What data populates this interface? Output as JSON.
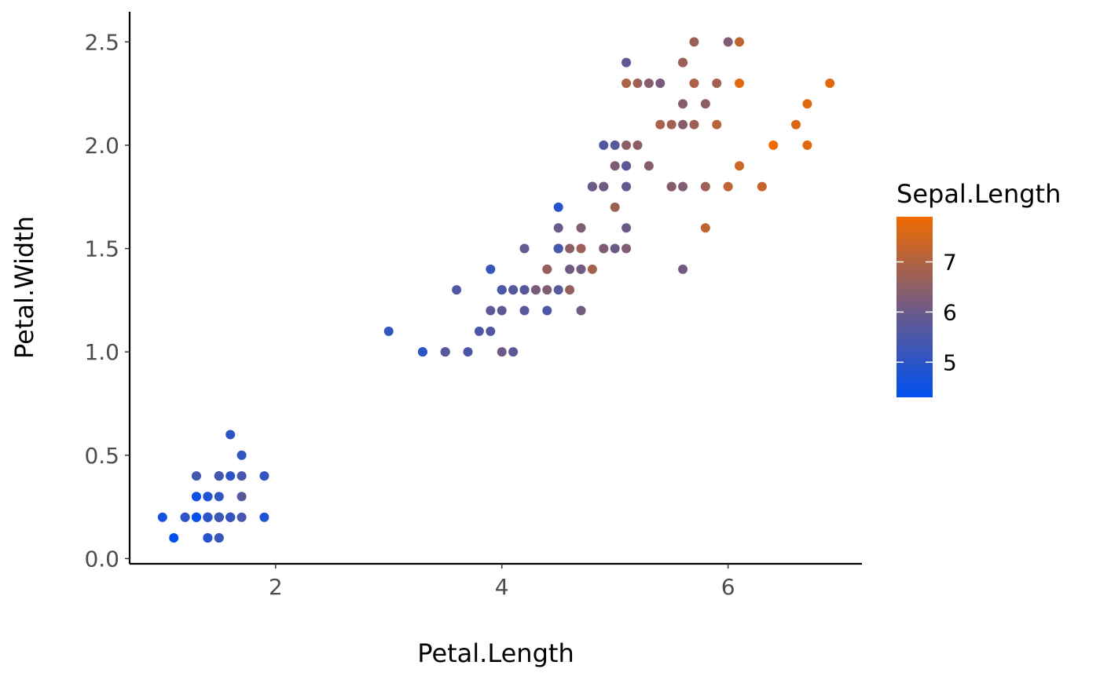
{
  "chart_data": {
    "type": "scatter",
    "xlabel": "Petal.Length",
    "ylabel": "Petal.Width",
    "xlim": [
      0.8,
      7.1
    ],
    "ylim": [
      -0.01,
      2.6
    ],
    "x_ticks": [
      2,
      4,
      6
    ],
    "x_tick_labels": [
      "2",
      "4",
      "6"
    ],
    "y_ticks": [
      0.0,
      0.5,
      1.0,
      1.5,
      2.0,
      2.5
    ],
    "y_tick_labels": [
      "0.0",
      "0.5",
      "1.0",
      "1.5",
      "2.0",
      "2.5"
    ],
    "grid": false,
    "legend": {
      "title": "Sepal.Length",
      "placement": "right",
      "min": 4.3,
      "max": 7.9,
      "breaks": [
        5,
        6,
        7
      ],
      "break_labels": [
        "5",
        "6",
        "7"
      ]
    },
    "color_low": "#0050F0",
    "color_mid": "#6A5A8A",
    "color_high": "#F06A00",
    "points": [
      [
        1.4,
        0.2,
        5.1
      ],
      [
        1.4,
        0.2,
        4.9
      ],
      [
        1.3,
        0.2,
        4.7
      ],
      [
        1.5,
        0.2,
        4.6
      ],
      [
        1.4,
        0.2,
        5.0
      ],
      [
        1.7,
        0.4,
        5.4
      ],
      [
        1.4,
        0.3,
        4.6
      ],
      [
        1.5,
        0.2,
        5.0
      ],
      [
        1.4,
        0.2,
        4.4
      ],
      [
        1.5,
        0.1,
        4.9
      ],
      [
        1.5,
        0.2,
        5.4
      ],
      [
        1.6,
        0.2,
        4.8
      ],
      [
        1.4,
        0.1,
        4.8
      ],
      [
        1.1,
        0.1,
        4.3
      ],
      [
        1.2,
        0.2,
        5.8
      ],
      [
        1.5,
        0.4,
        5.7
      ],
      [
        1.3,
        0.4,
        5.4
      ],
      [
        1.4,
        0.3,
        5.1
      ],
      [
        1.7,
        0.3,
        5.7
      ],
      [
        1.5,
        0.3,
        5.1
      ],
      [
        1.7,
        0.2,
        5.4
      ],
      [
        1.5,
        0.4,
        5.1
      ],
      [
        1.0,
        0.2,
        4.6
      ],
      [
        1.7,
        0.5,
        5.1
      ],
      [
        1.9,
        0.2,
        4.8
      ],
      [
        1.6,
        0.2,
        5.0
      ],
      [
        1.6,
        0.4,
        5.0
      ],
      [
        1.5,
        0.2,
        5.2
      ],
      [
        1.4,
        0.2,
        5.2
      ],
      [
        1.6,
        0.2,
        4.7
      ],
      [
        1.6,
        0.2,
        4.8
      ],
      [
        1.5,
        0.4,
        5.4
      ],
      [
        1.5,
        0.1,
        5.2
      ],
      [
        1.4,
        0.2,
        5.5
      ],
      [
        1.5,
        0.2,
        4.9
      ],
      [
        1.2,
        0.2,
        5.0
      ],
      [
        1.3,
        0.2,
        5.5
      ],
      [
        1.4,
        0.1,
        4.9
      ],
      [
        1.3,
        0.2,
        4.4
      ],
      [
        1.5,
        0.2,
        5.1
      ],
      [
        1.3,
        0.3,
        5.0
      ],
      [
        1.3,
        0.3,
        4.5
      ],
      [
        1.3,
        0.2,
        4.4
      ],
      [
        1.6,
        0.6,
        5.0
      ],
      [
        1.9,
        0.4,
        5.1
      ],
      [
        1.4,
        0.3,
        4.8
      ],
      [
        1.6,
        0.2,
        5.1
      ],
      [
        1.4,
        0.2,
        4.6
      ],
      [
        1.5,
        0.2,
        5.3
      ],
      [
        1.4,
        0.2,
        5.0
      ],
      [
        4.7,
        1.4,
        7.0
      ],
      [
        4.5,
        1.5,
        6.4
      ],
      [
        4.9,
        1.5,
        6.9
      ],
      [
        4.0,
        1.3,
        5.5
      ],
      [
        4.6,
        1.5,
        6.5
      ],
      [
        4.5,
        1.3,
        5.7
      ],
      [
        4.7,
        1.6,
        6.3
      ],
      [
        3.3,
        1.0,
        4.9
      ],
      [
        4.6,
        1.3,
        6.6
      ],
      [
        3.9,
        1.4,
        5.2
      ],
      [
        3.5,
        1.0,
        5.0
      ],
      [
        4.2,
        1.5,
        5.9
      ],
      [
        4.0,
        1.0,
        6.0
      ],
      [
        4.7,
        1.4,
        6.1
      ],
      [
        3.6,
        1.3,
        5.6
      ],
      [
        4.4,
        1.4,
        6.7
      ],
      [
        4.5,
        1.5,
        5.6
      ],
      [
        4.1,
        1.0,
        5.8
      ],
      [
        4.5,
        1.5,
        6.2
      ],
      [
        3.9,
        1.1,
        5.6
      ],
      [
        4.8,
        1.8,
        5.9
      ],
      [
        4.0,
        1.3,
        6.1
      ],
      [
        4.9,
        1.5,
        6.3
      ],
      [
        4.7,
        1.2,
        6.1
      ],
      [
        4.3,
        1.3,
        6.4
      ],
      [
        4.4,
        1.4,
        6.6
      ],
      [
        4.8,
        1.4,
        6.8
      ],
      [
        5.0,
        1.7,
        6.7
      ],
      [
        4.5,
        1.5,
        6.0
      ],
      [
        3.5,
        1.0,
        5.7
      ],
      [
        3.8,
        1.1,
        5.5
      ],
      [
        3.7,
        1.0,
        5.5
      ],
      [
        3.9,
        1.2,
        5.8
      ],
      [
        5.1,
        1.6,
        6.0
      ],
      [
        4.5,
        1.5,
        5.4
      ],
      [
        4.5,
        1.6,
        6.0
      ],
      [
        4.7,
        1.5,
        6.7
      ],
      [
        4.4,
        1.3,
        6.3
      ],
      [
        4.1,
        1.3,
        5.6
      ],
      [
        4.0,
        1.3,
        5.5
      ],
      [
        4.4,
        1.2,
        5.5
      ],
      [
        4.6,
        1.4,
        6.1
      ],
      [
        4.0,
        1.2,
        5.8
      ],
      [
        3.3,
        1.0,
        5.0
      ],
      [
        4.2,
        1.3,
        5.6
      ],
      [
        4.2,
        1.2,
        5.7
      ],
      [
        4.2,
        1.3,
        5.7
      ],
      [
        4.3,
        1.3,
        6.2
      ],
      [
        3.0,
        1.1,
        5.1
      ],
      [
        4.1,
        1.3,
        5.7
      ],
      [
        6.0,
        2.5,
        6.3
      ],
      [
        5.1,
        1.9,
        5.8
      ],
      [
        5.9,
        2.1,
        7.1
      ],
      [
        5.6,
        1.8,
        6.3
      ],
      [
        5.8,
        2.2,
        6.5
      ],
      [
        6.6,
        2.1,
        7.6
      ],
      [
        4.5,
        1.7,
        4.9
      ],
      [
        6.3,
        1.8,
        7.3
      ],
      [
        5.8,
        1.8,
        6.7
      ],
      [
        6.1,
        2.5,
        7.2
      ],
      [
        5.1,
        2.0,
        6.5
      ],
      [
        5.3,
        1.9,
        6.4
      ],
      [
        5.5,
        2.1,
        6.8
      ],
      [
        5.0,
        2.0,
        5.7
      ],
      [
        5.1,
        2.4,
        5.8
      ],
      [
        5.3,
        2.3,
        6.4
      ],
      [
        5.5,
        1.8,
        6.5
      ],
      [
        6.7,
        2.2,
        7.7
      ],
      [
        6.9,
        2.3,
        7.7
      ],
      [
        5.0,
        1.5,
        6.0
      ],
      [
        5.7,
        2.3,
        6.9
      ],
      [
        4.9,
        2.0,
        5.6
      ],
      [
        6.7,
        2.0,
        7.7
      ],
      [
        4.9,
        1.8,
        6.3
      ],
      [
        5.7,
        2.1,
        6.7
      ],
      [
        6.0,
        1.8,
        7.2
      ],
      [
        4.8,
        1.8,
        6.2
      ],
      [
        4.9,
        1.8,
        6.1
      ],
      [
        5.6,
        2.1,
        6.4
      ],
      [
        5.8,
        1.6,
        7.2
      ],
      [
        6.1,
        1.9,
        7.4
      ],
      [
        6.4,
        2.0,
        7.9
      ],
      [
        5.6,
        2.2,
        6.4
      ],
      [
        5.1,
        1.5,
        6.3
      ],
      [
        5.6,
        1.4,
        6.1
      ],
      [
        6.1,
        2.3,
        7.7
      ],
      [
        5.6,
        2.4,
        6.3
      ],
      [
        5.5,
        1.8,
        6.4
      ],
      [
        4.8,
        1.8,
        6.0
      ],
      [
        5.4,
        2.1,
        6.9
      ],
      [
        5.6,
        2.4,
        6.7
      ],
      [
        5.1,
        2.3,
        6.9
      ],
      [
        5.1,
        1.9,
        5.8
      ],
      [
        5.9,
        2.3,
        6.8
      ],
      [
        5.7,
        2.5,
        6.7
      ],
      [
        5.2,
        2.3,
        6.7
      ],
      [
        5.0,
        1.9,
        6.3
      ],
      [
        5.2,
        2.0,
        6.5
      ],
      [
        5.4,
        2.3,
        6.2
      ],
      [
        5.1,
        1.8,
        5.9
      ]
    ]
  }
}
